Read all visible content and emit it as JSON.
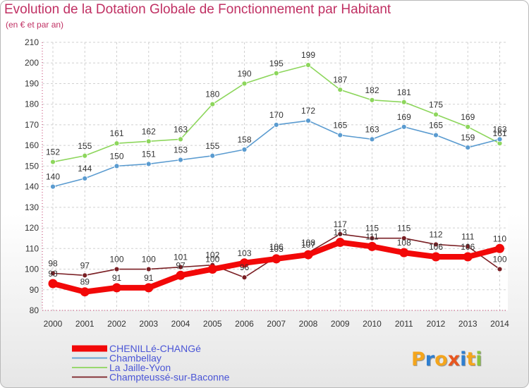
{
  "header": {
    "title": "Evolution de la Dotation Globale de Fonctionnement par Habitant",
    "subtitle": "(en € et par an)"
  },
  "logo": {
    "text": "Proxiti",
    "colors": [
      "#f4a51c",
      "#2e7fd1",
      "#f4a51c",
      "#e8561f",
      "#2e7fd1",
      "#f4a51c",
      "#8bc43f"
    ]
  },
  "chart_data": {
    "type": "line",
    "title": "Evolution de la Dotation Globale de Fonctionnement par Habitant",
    "subtitle": "(en € et par an)",
    "xlabel": "",
    "ylabel": "",
    "ylim": [
      80,
      210
    ],
    "yticks": [
      80,
      90,
      100,
      110,
      120,
      130,
      140,
      150,
      160,
      170,
      180,
      190,
      200,
      210
    ],
    "grid": true,
    "legend_position": "bottom-left",
    "x": [
      "2000",
      "2001",
      "2002",
      "2003",
      "2004",
      "2005",
      "2006",
      "2007",
      "2008",
      "2009",
      "2010",
      "2011",
      "2012",
      "2013",
      "2014"
    ],
    "series": [
      {
        "name": "La Jaille-Yvon",
        "color": "#8dd65c",
        "values": [
          152,
          155,
          161,
          162,
          163,
          180,
          190,
          195,
          199,
          187,
          182,
          181,
          175,
          169,
          161
        ]
      },
      {
        "name": "Chambellay",
        "color": "#5a9bd0",
        "values": [
          140,
          144,
          150,
          151,
          153,
          155,
          158,
          170,
          172,
          165,
          163,
          169,
          165,
          159,
          163
        ]
      },
      {
        "name": "Champteussé-sur-Baconne",
        "color": "#7a1f24",
        "values": [
          98,
          97,
          100,
          100,
          101,
          102,
          96,
          106,
          108,
          117,
          115,
          115,
          112,
          111,
          100
        ]
      },
      {
        "name": "CHENILLé-CHANGé",
        "color": "#f20808",
        "values": [
          93,
          89,
          91,
          91,
          97,
          100,
          103,
          105,
          107,
          113,
          111,
          108,
          106,
          106,
          110
        ]
      }
    ],
    "legend": [
      "CHENILLé-CHANGé",
      "Chambellay",
      "La Jaille-Yvon",
      "Champteussé-sur-Baconne"
    ]
  }
}
